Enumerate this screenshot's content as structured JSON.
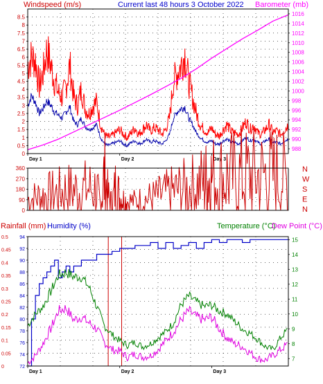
{
  "colors": {
    "wind": "#ff0000",
    "wind_dir": "#cc0000",
    "gust_dark": "#0000aa",
    "barometer": "#ff00ff",
    "humidity": "#0000c8",
    "temperature": "#008000",
    "dew_point": "#e000e0",
    "rainfall": "#cc0000",
    "frame": "#000000",
    "title": "#0000cc"
  },
  "chart_data": [
    {
      "type": "line",
      "panel": "wind-barometer",
      "title": "Current last 48 hours 3 October 2022",
      "ylabel_left": "Windspeed (m/s)",
      "ylabel_right": "Barometer (mb)",
      "yticks_left": [
        "0",
        "0.5",
        "1",
        "1.5",
        "2",
        "2.5",
        "3",
        "3.5",
        "4",
        "4.5",
        "5",
        "5.5",
        "6",
        "6.5",
        "7",
        "7.5",
        "8",
        "8.5"
      ],
      "yticks_right": [
        "988",
        "990",
        "992",
        "994",
        "996",
        "998",
        "1000",
        "1002",
        "1004",
        "1006",
        "1008",
        "1010",
        "1012",
        "1014",
        "1016"
      ],
      "ylim_left": [
        0,
        9
      ],
      "ylim_right": [
        987,
        1017
      ],
      "x_labels": [
        "Day 1",
        "Day 2",
        "Day 3"
      ],
      "x_hours": [
        0,
        24,
        48
      ],
      "series": [
        {
          "name": "Windspeed (m/s)",
          "axis": "left",
          "kind": "wind",
          "x": [
            0,
            1,
            2,
            3,
            4,
            5,
            6,
            7,
            8,
            9,
            10,
            11,
            12,
            13,
            14,
            15,
            16,
            17,
            18,
            19,
            20,
            21,
            22,
            23,
            24,
            25,
            26,
            27,
            28,
            29,
            30,
            31,
            32,
            33,
            34,
            35,
            36,
            37,
            38,
            39,
            40,
            41,
            42,
            43,
            44,
            45,
            46,
            47,
            48,
            49,
            50,
            51,
            52,
            53,
            54,
            55,
            56,
            57,
            58,
            59,
            60,
            61,
            62,
            63,
            64,
            65,
            66,
            67,
            68
          ],
          "y": [
            5.5,
            6,
            5.8,
            4.2,
            5,
            6.5,
            5.5,
            4.5,
            3.8,
            3.5,
            4.2,
            5.5,
            3.5,
            3,
            4,
            2.8,
            2.5,
            3,
            3.2,
            1.8,
            1.2,
            1.0,
            1.1,
            1.3,
            1.5,
            1.2,
            1.0,
            1.3,
            1.6,
            1.2,
            1.5,
            1.8,
            1.4,
            1.6,
            1.5,
            1.2,
            1.5,
            2.2,
            4.5,
            5,
            5.5,
            6.2,
            4.5,
            3.5,
            2.5,
            1.8,
            1.5,
            1.3,
            1.6,
            1.2,
            1.1,
            1.5,
            1.8,
            1.4,
            1.3,
            1.2,
            1.6,
            2.0,
            1.5,
            1.8,
            1.3,
            1.2,
            1.5,
            1.8,
            1.3,
            1.4,
            1.2,
            1.5,
            1.8
          ]
        },
        {
          "name": "Gust",
          "axis": "left",
          "kind": "gust",
          "x": [
            0,
            1,
            2,
            3,
            4,
            5,
            6,
            7,
            8,
            9,
            10,
            11,
            12,
            13,
            14,
            15,
            16,
            17,
            18,
            19,
            20,
            21,
            22,
            23,
            24,
            25,
            26,
            27,
            28,
            29,
            30,
            31,
            32,
            33,
            34,
            35,
            36,
            37,
            38,
            39,
            40,
            41,
            42,
            43,
            44,
            45,
            46,
            47,
            48,
            49,
            50,
            51,
            52,
            53,
            54,
            55,
            56,
            57,
            58,
            59,
            60,
            61,
            62,
            63,
            64,
            65,
            66,
            67,
            68
          ],
          "y": [
            3,
            3.6,
            3.2,
            2.5,
            2.8,
            3.3,
            3,
            2.6,
            2.4,
            2.2,
            2.6,
            2.9,
            2.0,
            1.8,
            2.2,
            1.7,
            1.5,
            1.6,
            1.8,
            1.0,
            0.6,
            0.5,
            0.6,
            0.7,
            0.8,
            0.6,
            0.5,
            0.7,
            0.8,
            0.6,
            0.7,
            0.9,
            0.7,
            0.8,
            0.7,
            0.6,
            0.8,
            1.2,
            2.2,
            2.6,
            2.8,
            2.9,
            2.2,
            1.8,
            1.3,
            1.0,
            0.8,
            0.7,
            0.8,
            0.6,
            0.6,
            0.8,
            0.9,
            0.7,
            0.7,
            0.6,
            0.8,
            1.0,
            0.8,
            0.9,
            0.7,
            0.6,
            0.8,
            0.9,
            0.7,
            0.7,
            0.6,
            0.8,
            0.9
          ]
        },
        {
          "name": "Barometer (mb)",
          "axis": "right",
          "kind": "baro",
          "x": [
            0,
            4,
            8,
            12,
            16,
            20,
            24,
            28,
            32,
            36,
            40,
            44,
            48,
            52,
            56,
            60,
            64,
            68
          ],
          "y": [
            987.8,
            988.8,
            990,
            991.5,
            993,
            994.5,
            996,
            997.6,
            999.2,
            1000.9,
            1002.6,
            1004.6,
            1006.8,
            1008.8,
            1010.8,
            1012.6,
            1014.5,
            1015.8
          ]
        }
      ]
    },
    {
      "type": "line",
      "panel": "wind-direction",
      "yticks_left": [
        "0",
        "90",
        "180",
        "270",
        "360"
      ],
      "ylim_left": [
        0,
        360
      ],
      "compass_right": [
        "N",
        "W",
        "S",
        "E",
        "N"
      ],
      "series": [
        {
          "name": "Wind direction",
          "axis": "left",
          "kind": "dir",
          "x": [
            0,
            2,
            4,
            6,
            8,
            10,
            12,
            14,
            16,
            18,
            19,
            20,
            21,
            22,
            23,
            24,
            25,
            26,
            28,
            30,
            32,
            34,
            36,
            38,
            40,
            42,
            44,
            46,
            47,
            48,
            50,
            52,
            54,
            56,
            58,
            60,
            62,
            64,
            66,
            68
          ],
          "y": [
            95,
            110,
            125,
            140,
            150,
            170,
            170,
            175,
            185,
            180,
            40,
            300,
            120,
            60,
            210,
            110,
            90,
            80,
            75,
            90,
            105,
            120,
            140,
            160,
            175,
            190,
            210,
            240,
            265,
            270,
            280,
            285,
            280,
            290,
            295,
            290,
            300,
            295,
            300,
            240
          ]
        }
      ]
    },
    {
      "type": "line",
      "panel": "temperature-humidity",
      "ylabel_left": "Rainfall (mm)",
      "ylabel_center": "Humidity (%)",
      "ylabel_right": "Temperature (°C)",
      "ylabel_right2": "Dew Point (°C)",
      "yticks_rain": [
        "0",
        "0.05",
        "0.1",
        "0.15",
        "0.2",
        "0.25",
        "0.3",
        "0.35",
        "0.4",
        "0.45",
        "0.5"
      ],
      "yticks_humidity": [
        "72",
        "74",
        "76",
        "78",
        "80",
        "82",
        "84",
        "86",
        "88",
        "90",
        "92",
        "94"
      ],
      "yticks_temp": [
        "7",
        "8",
        "9",
        "10",
        "11",
        "12",
        "13",
        "14",
        "15"
      ],
      "ylim_rain": [
        0,
        0.5
      ],
      "ylim_humidity": [
        72,
        94
      ],
      "ylim_temp": [
        6.5,
        15.2
      ],
      "x_labels": [
        "Day 1",
        "Day 2",
        "Day 3"
      ],
      "series": [
        {
          "name": "Humidity (%)",
          "axis": "humidity",
          "kind": "hum",
          "x": [
            0,
            1,
            2,
            3,
            4,
            5,
            6,
            7,
            8,
            9,
            10,
            11,
            12,
            14,
            16,
            18,
            20,
            22,
            24,
            26,
            28,
            30,
            32,
            34,
            36,
            38,
            40,
            42,
            44,
            46,
            48,
            50,
            52,
            54,
            56,
            58,
            60,
            62,
            64,
            66,
            68
          ],
          "y": [
            72,
            80,
            84,
            86,
            87,
            88,
            89,
            90,
            87,
            88,
            89,
            88,
            89,
            90,
            90,
            91,
            91,
            91.5,
            92,
            92,
            92.5,
            92.5,
            93,
            92,
            93,
            92,
            92.5,
            93,
            92,
            93,
            93.5,
            93,
            93.5,
            93.5,
            93,
            93.5,
            93.5,
            93.5,
            93.5,
            93.5,
            93.5
          ]
        },
        {
          "name": "Temperature (°C)",
          "axis": "temp",
          "kind": "temp",
          "x": [
            0,
            2,
            4,
            6,
            8,
            10,
            12,
            14,
            16,
            18,
            20,
            22,
            24,
            26,
            28,
            30,
            32,
            34,
            36,
            38,
            40,
            42,
            44,
            46,
            48,
            50,
            52,
            54,
            56,
            58,
            60,
            62,
            64,
            66,
            68
          ],
          "y": [
            9.2,
            10,
            10.5,
            11.5,
            12.6,
            12.8,
            12.5,
            12.5,
            11.8,
            10.5,
            9.2,
            8.6,
            8.2,
            7.9,
            8.1,
            7.8,
            8.0,
            8.4,
            8.8,
            9.4,
            10.6,
            11.2,
            10.8,
            10.5,
            10.6,
            10.2,
            10.0,
            9.5,
            9.0,
            8.7,
            8.3,
            7.8,
            7.6,
            8.4,
            9.0
          ]
        },
        {
          "name": "Dew Point (°C)",
          "axis": "temp",
          "kind": "dew",
          "x": [
            0,
            2,
            4,
            6,
            8,
            10,
            12,
            14,
            16,
            18,
            20,
            22,
            24,
            26,
            28,
            30,
            32,
            34,
            36,
            38,
            40,
            42,
            44,
            46,
            48,
            50,
            52,
            54,
            56,
            58,
            60,
            62,
            64,
            66,
            68
          ],
          "y": [
            6.7,
            7.2,
            8,
            9,
            10.2,
            10.4,
            9.6,
            9.8,
            9.4,
            9.0,
            8.1,
            7.6,
            7.5,
            7.1,
            7.3,
            7.1,
            7.2,
            7.6,
            8.2,
            8.8,
            9.6,
            10.2,
            9.8,
            9.6,
            9.8,
            9.0,
            8.4,
            8.0,
            7.8,
            7.4,
            7.0,
            6.9,
            7.2,
            7.6,
            8.0
          ]
        },
        {
          "name": "Rainfall (mm)",
          "axis": "rain",
          "kind": "rain",
          "x": [
            0,
            21,
            21.01,
            24.5,
            24.51,
            68
          ],
          "y": [
            0,
            0,
            0.5,
            0.5,
            0,
            0
          ]
        }
      ]
    }
  ]
}
